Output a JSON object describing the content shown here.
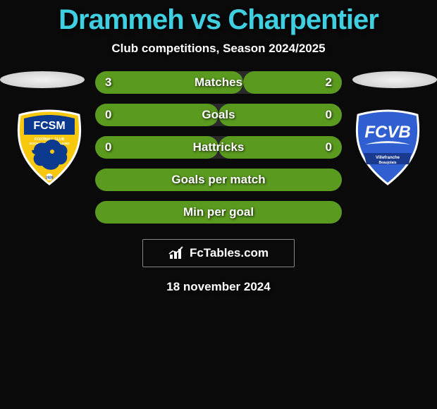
{
  "title_color": "#3fcfe0",
  "title": "Drammeh vs Charpentier",
  "subtitle": "Club competitions, Season 2024/2025",
  "branding": "FcTables.com",
  "date": "18 november 2024",
  "bar_green": "#5a9a1f",
  "bar_track": "#2a2a2a",
  "club_left": {
    "bg": "#f7c80e",
    "accent": "#0b3a8f",
    "text": "FCSM"
  },
  "club_right": {
    "bg": "#2f5fd0",
    "accent": "#ffffff",
    "text": "FCVB"
  },
  "rows": [
    {
      "label": "Matches",
      "left": "3",
      "right": "2",
      "left_pct": 60,
      "right_pct": 40
    },
    {
      "label": "Goals",
      "left": "0",
      "right": "0",
      "left_pct": 50,
      "right_pct": 50
    },
    {
      "label": "Hattricks",
      "left": "0",
      "right": "0",
      "left_pct": 50,
      "right_pct": 50
    },
    {
      "label": "Goals per match",
      "left": "",
      "right": "",
      "left_pct": 100,
      "right_pct": 0
    },
    {
      "label": "Min per goal",
      "left": "",
      "right": "",
      "left_pct": 100,
      "right_pct": 0
    }
  ]
}
